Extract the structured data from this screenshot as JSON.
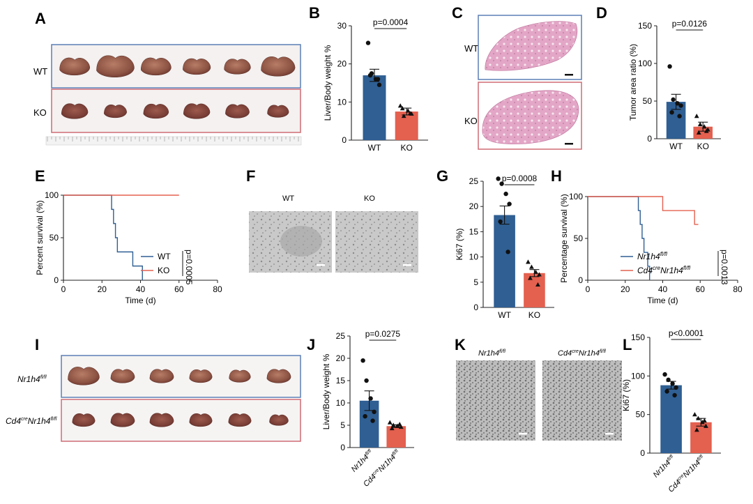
{
  "colors": {
    "wt": "#2f5f93",
    "ko": "#e4604f",
    "wt_box": "#5b7fb5",
    "ko_box": "#cf6b74",
    "axis": "#222222"
  },
  "panels": {
    "A": {
      "letter": "A",
      "row_wt": "WT",
      "row_ko": "KO"
    },
    "B": {
      "letter": "B",
      "pvalue": "p=0.0004"
    },
    "C": {
      "letter": "C",
      "row_wt": "WT",
      "row_ko": "KO"
    },
    "D": {
      "letter": "D",
      "pvalue": "p=0.0126"
    },
    "E": {
      "letter": "E"
    },
    "F": {
      "letter": "F",
      "col_wt": "WT",
      "col_ko": "KO"
    },
    "G": {
      "letter": "G",
      "pvalue": "p=0.0008"
    },
    "H": {
      "letter": "H"
    },
    "I": {
      "letter": "I",
      "row_wt": "Nr1h4fl/fl",
      "row_ko": "Cd4creNr1h4fl/fl"
    },
    "J": {
      "letter": "J",
      "pvalue": "p=0.0275"
    },
    "K": {
      "letter": "K",
      "col_wt": "Nr1h4fl/fl",
      "col_ko": "Cd4creNr1h4fl/fl"
    },
    "L": {
      "letter": "L",
      "pvalue": "p<0.0001"
    }
  },
  "chart_data": [
    {
      "panel": "B",
      "type": "bar",
      "categories": [
        "WT",
        "KO"
      ],
      "values": [
        17.0,
        7.5
      ],
      "sem": [
        1.6,
        0.9
      ],
      "points": [
        [
          25.5,
          17.5,
          16.0,
          14.5,
          17.0,
          16.0
        ],
        [
          9.0,
          6.3,
          7.7,
          6.9,
          8.3,
          7.0
        ]
      ],
      "ylabel": "Liver/Body weight %",
      "ylim": [
        0,
        30
      ],
      "yticks": [
        0,
        10,
        20,
        30
      ]
    },
    {
      "panel": "D",
      "type": "bar",
      "categories": [
        "WT",
        "KO"
      ],
      "values": [
        49,
        16
      ],
      "sem": [
        10,
        6
      ],
      "points": [
        [
          96,
          52,
          47,
          44,
          35,
          30
        ],
        [
          30,
          19,
          16,
          12,
          8,
          10
        ]
      ],
      "ylabel": "Tumor area ratio (%)",
      "ylim": [
        0,
        150
      ],
      "yticks": [
        0,
        50,
        100,
        150
      ]
    },
    {
      "panel": "G",
      "type": "bar",
      "categories": [
        "WT",
        "KO"
      ],
      "values": [
        18.3,
        6.8
      ],
      "sem": [
        1.8,
        0.7
      ],
      "points": [
        [
          25.5,
          24.5,
          22.5,
          20.5,
          17.0,
          11.0
        ],
        [
          9.0,
          8.0,
          7.0,
          6.5,
          5.8,
          4.5
        ]
      ],
      "ylabel": "Ki67 (%)",
      "ylim": [
        0,
        25
      ],
      "yticks": [
        0,
        5,
        10,
        15,
        20,
        25
      ]
    },
    {
      "panel": "J",
      "type": "bar",
      "categories": [
        "Nr1h4fl/fl",
        "Cd4creNr1h4fl/fl"
      ],
      "values": [
        10.5,
        4.8
      ],
      "sem": [
        2.2,
        0.3
      ],
      "points": [
        [
          19.5,
          15.0,
          11.0,
          8.0,
          7.0,
          6.0
        ],
        [
          5.6,
          5.0,
          4.8,
          4.6,
          4.3,
          5.2
        ]
      ],
      "ylabel": "Liver/Body weight %",
      "ylim": [
        0,
        25
      ],
      "yticks": [
        0,
        5,
        10,
        15,
        20,
        25
      ]
    },
    {
      "panel": "L",
      "type": "bar",
      "categories": [
        "Nr1h4fl/fl",
        "Cd4creNr1h4fl/fl"
      ],
      "values": [
        88,
        40
      ],
      "sem": [
        5,
        5
      ],
      "points": [
        [
          102,
          95,
          90,
          85,
          80,
          75
        ],
        [
          50,
          45,
          40,
          35,
          30,
          42
        ]
      ],
      "ylabel": "Ki67 (%)",
      "ylim": [
        0,
        150
      ],
      "yticks": [
        0,
        50,
        100,
        150
      ]
    },
    {
      "panel": "E",
      "type": "line",
      "xlabel": "Time (d)",
      "ylabel": "Percent survival (%)",
      "xlim": [
        0,
        80
      ],
      "ylim": [
        0,
        100
      ],
      "xticks": [
        0,
        20,
        40,
        60,
        80
      ],
      "yticks": [
        0,
        50,
        100
      ],
      "series": [
        {
          "name": "WT",
          "x": [
            0,
            25,
            25,
            26,
            26,
            27,
            27,
            28,
            28,
            36,
            36,
            41,
            41
          ],
          "y": [
            100,
            100,
            83.3,
            83.3,
            66.7,
            66.7,
            50,
            50,
            33.3,
            33.3,
            16.7,
            16.7,
            0
          ]
        },
        {
          "name": "KO",
          "x": [
            0,
            60
          ],
          "y": [
            100,
            100
          ]
        }
      ],
      "pvalue": "p=0.0005"
    },
    {
      "panel": "H",
      "type": "line",
      "xlabel": "Time (d)",
      "ylabel": "Percentage survival (%)",
      "xlim": [
        0,
        80
      ],
      "ylim": [
        0,
        100
      ],
      "xticks": [
        0,
        20,
        40,
        60,
        80
      ],
      "yticks": [
        0,
        50,
        100
      ],
      "series": [
        {
          "name": "Nr1h4fl/fl",
          "x": [
            0,
            27,
            27,
            28,
            28,
            29,
            29,
            30,
            30,
            32,
            32,
            33,
            33
          ],
          "y": [
            100,
            100,
            83.3,
            83.3,
            66.7,
            66.7,
            50,
            50,
            33.3,
            33.3,
            16.7,
            16.7,
            0
          ]
        },
        {
          "name": "Cd4creNr1h4fl/fl",
          "x": [
            0,
            40,
            40,
            57,
            57,
            59
          ],
          "y": [
            100,
            100,
            83.3,
            83.3,
            66.7,
            66.7
          ]
        }
      ],
      "pvalue": "p=0.0013"
    }
  ]
}
